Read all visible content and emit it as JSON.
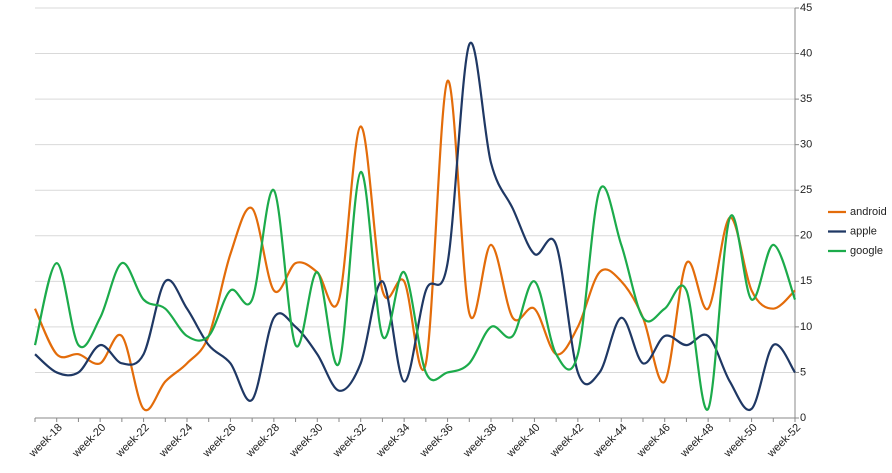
{
  "chart_data": {
    "type": "line",
    "categories": [
      null,
      "week-18",
      null,
      "week-20",
      null,
      "week-22",
      null,
      "week-24",
      null,
      "week-26",
      null,
      "week-28",
      null,
      "week-30",
      null,
      "week-32",
      null,
      "week-34",
      null,
      "week-36",
      null,
      "week-38",
      null,
      "week-40",
      null,
      "week-42",
      null,
      "week-44",
      null,
      "week-46",
      null,
      "week-48",
      null,
      "week-50",
      null,
      "week-52"
    ],
    "series": [
      {
        "name": "android",
        "color": "#e36c0a",
        "values": [
          12,
          7,
          7,
          6,
          9,
          1,
          4,
          6,
          9,
          18,
          23,
          14,
          17,
          16,
          13,
          32,
          14,
          15,
          6,
          37,
          11.5,
          19,
          11,
          12,
          7,
          10,
          16,
          15,
          11,
          4,
          17,
          12,
          22,
          14,
          12,
          14
        ]
      },
      {
        "name": "apple",
        "color": "#1f3864",
        "values": [
          7,
          5,
          5,
          8,
          6,
          7,
          15,
          12,
          8,
          6,
          2,
          11,
          10,
          7,
          3,
          6,
          15,
          4,
          14,
          17,
          41,
          28,
          23,
          18,
          19,
          5,
          5,
          11,
          6,
          9,
          8,
          9,
          4,
          1,
          8,
          5
        ]
      },
      {
        "name": "google",
        "color": "#1cab4b",
        "values": [
          8,
          17,
          8,
          11,
          17,
          13,
          12,
          9,
          9,
          14,
          13,
          25,
          8,
          16,
          6,
          27,
          9,
          16,
          5,
          5,
          6,
          10,
          9,
          15,
          7,
          7,
          25,
          19,
          11,
          12,
          14,
          1,
          22,
          13,
          19,
          13
        ]
      }
    ],
    "ylim": [
      0,
      45
    ],
    "yticks": [
      0,
      5,
      10,
      15,
      20,
      25,
      30,
      35,
      40,
      45
    ],
    "grid": true,
    "legend": "right"
  }
}
